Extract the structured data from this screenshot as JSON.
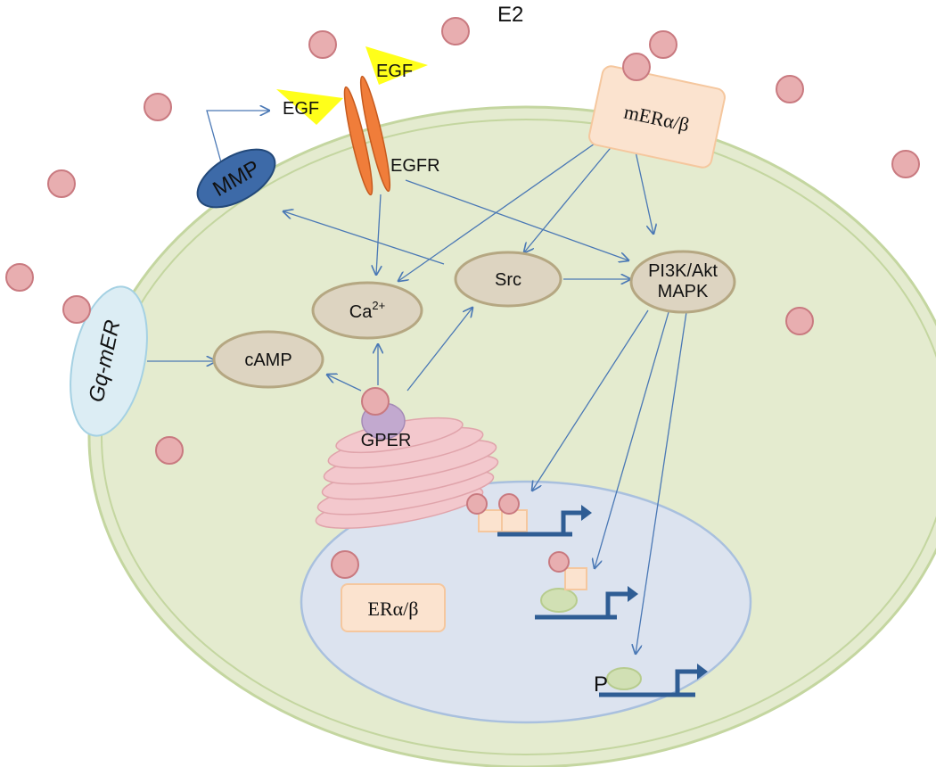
{
  "labels": {
    "e2": "E2",
    "egf_1": "EGF",
    "egf_2": "EGF",
    "egfr": "EGFR",
    "mmp": "MMP",
    "mer": "mERα/β",
    "gq_mer": "Gq-mER",
    "src": "Src",
    "ca": "Ca",
    "ca_sup": "2+",
    "camp": "cAMP",
    "gper": "GPER",
    "pi3k_line1": "PI3K/Akt",
    "pi3k_line2": "MAPK",
    "er_nuclear": "ERα/β",
    "phospho": "P"
  },
  "colors": {
    "e2_fill": "#e8aeb0",
    "e2_stroke": "#c97a80",
    "cell_fill": "#e4ebcf",
    "cell_stroke": "#c4d6a0",
    "nucleus_fill": "#dce3ef",
    "nucleus_stroke": "#a9c0de",
    "node_fill": "#ddd4c1",
    "node_stroke": "#b5a782",
    "arrow": "#4a78b5",
    "mmp_fill": "#3d6aa8",
    "egfr_fill": "#f07d3a",
    "egf_fill": "#ffff1a",
    "er_box_fill": "#fbe3cf",
    "er_box_stroke": "#f5c79e",
    "gq_fill": "#dcedf4",
    "gq_stroke": "#a5d1e3",
    "er_stack_fill": "#f3c8cd",
    "gper_fill": "#c2a9cf",
    "promoter": "#2f5d94",
    "tf_green": "#d1e0b4"
  }
}
